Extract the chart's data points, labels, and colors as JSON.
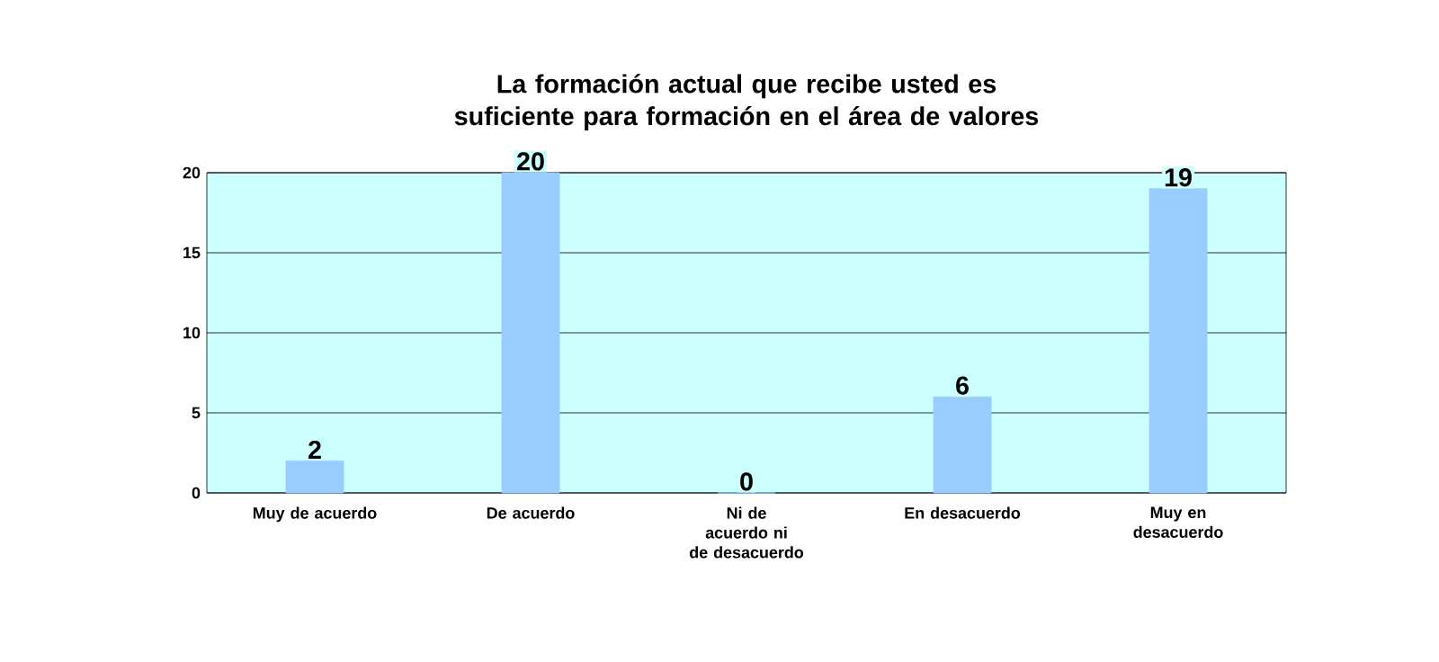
{
  "chart_data": {
    "type": "bar",
    "title": "La formación actual que recibe usted es suficiente para formación en el área de valores",
    "categories": [
      "Muy de acuerdo",
      "De acuerdo",
      "Ni de acuerdo ni de desacuerdo",
      "En desacuerdo",
      "Muy en desacuerdo"
    ],
    "values": [
      2,
      20,
      0,
      6,
      19
    ],
    "color": "#99ccff",
    "ylim": [
      0,
      20
    ],
    "yticks": [
      0,
      5,
      10,
      15,
      20
    ],
    "grid": "y",
    "data_labels": true
  }
}
